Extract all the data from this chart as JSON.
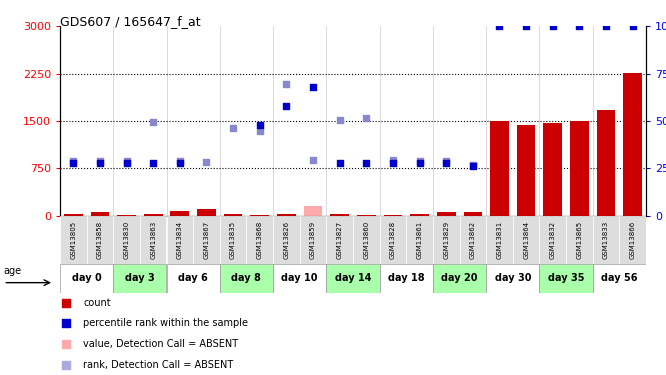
{
  "title": "GDS607 / 165647_f_at",
  "samples": [
    "GSM13805",
    "GSM13858",
    "GSM13830",
    "GSM13863",
    "GSM13834",
    "GSM13867",
    "GSM13835",
    "GSM13868",
    "GSM13826",
    "GSM13859",
    "GSM13827",
    "GSM13860",
    "GSM13828",
    "GSM13861",
    "GSM13829",
    "GSM13862",
    "GSM13831",
    "GSM13864",
    "GSM13832",
    "GSM13865",
    "GSM13833",
    "GSM13866"
  ],
  "day_groups": [
    {
      "label": "day 0",
      "indices": [
        0,
        1
      ],
      "green": false
    },
    {
      "label": "day 3",
      "indices": [
        2,
        3
      ],
      "green": true
    },
    {
      "label": "day 6",
      "indices": [
        4,
        5
      ],
      "green": false
    },
    {
      "label": "day 8",
      "indices": [
        6,
        7
      ],
      "green": true
    },
    {
      "label": "day 10",
      "indices": [
        8,
        9
      ],
      "green": false
    },
    {
      "label": "day 14",
      "indices": [
        10,
        11
      ],
      "green": true
    },
    {
      "label": "day 18",
      "indices": [
        12,
        13
      ],
      "green": false
    },
    {
      "label": "day 20",
      "indices": [
        14,
        15
      ],
      "green": true
    },
    {
      "label": "day 30",
      "indices": [
        16,
        17
      ],
      "green": false
    },
    {
      "label": "day 35",
      "indices": [
        18,
        19
      ],
      "green": true
    },
    {
      "label": "day 56",
      "indices": [
        20,
        21
      ],
      "green": false
    }
  ],
  "count_values": [
    20,
    60,
    10,
    30,
    80,
    100,
    20,
    10,
    20,
    150,
    30,
    10,
    10,
    30,
    50,
    60,
    1500,
    1430,
    1460,
    1500,
    1680,
    2260
  ],
  "count_absent": [
    false,
    false,
    false,
    false,
    false,
    false,
    false,
    false,
    false,
    true,
    false,
    false,
    false,
    false,
    false,
    false,
    false,
    false,
    false,
    false,
    false,
    false
  ],
  "rank_values": [
    28,
    28,
    28,
    28,
    28,
    null,
    null,
    48,
    58,
    68,
    28,
    28,
    28,
    28,
    28,
    26,
    100,
    100,
    100,
    100,
    100,
    100
  ],
  "rank_absent": [
    false,
    false,
    false,
    false,
    false,
    true,
    true,
    false,
    false,
    false,
    false,
    false,
    false,
    false,
    false,
    false,
    false,
    false,
    false,
    false,
    false,
    false
  ],
  "blue_rank_values": [
    870,
    870,
    870,
    1490,
    860,
    850,
    1390,
    1340,
    2090,
    880,
    1510,
    1540,
    880,
    870,
    860,
    800,
    null,
    null,
    null,
    null,
    null,
    null
  ],
  "blue_rank_absent": [
    false,
    false,
    false,
    false,
    false,
    false,
    false,
    false,
    false,
    false,
    false,
    false,
    false,
    false,
    false,
    false,
    true,
    true,
    true,
    true,
    true,
    true
  ],
  "ylim_left": [
    0,
    3000
  ],
  "ylim_right": [
    0,
    100
  ],
  "yticks_left": [
    0,
    750,
    1500,
    2250,
    3000
  ],
  "yticks_right": [
    0,
    25,
    50,
    75,
    100
  ],
  "bar_color": "#cc0000",
  "bar_absent_color": "#ffaaaa",
  "blue_present_color": "#8888cc",
  "blue_absent_color": "#aaaadd",
  "rank_present_color": "#0000cc",
  "rank_absent_color": "#aaaadd",
  "bg_gsm": "#dddddd",
  "bg_day_green": "#aaffaa",
  "bg_day_white": "#ffffff",
  "legend_items": [
    {
      "color": "#cc0000",
      "label": "count"
    },
    {
      "color": "#0000cc",
      "label": "percentile rank within the sample"
    },
    {
      "color": "#ffaaaa",
      "label": "value, Detection Call = ABSENT"
    },
    {
      "color": "#aaaadd",
      "label": "rank, Detection Call = ABSENT"
    }
  ]
}
